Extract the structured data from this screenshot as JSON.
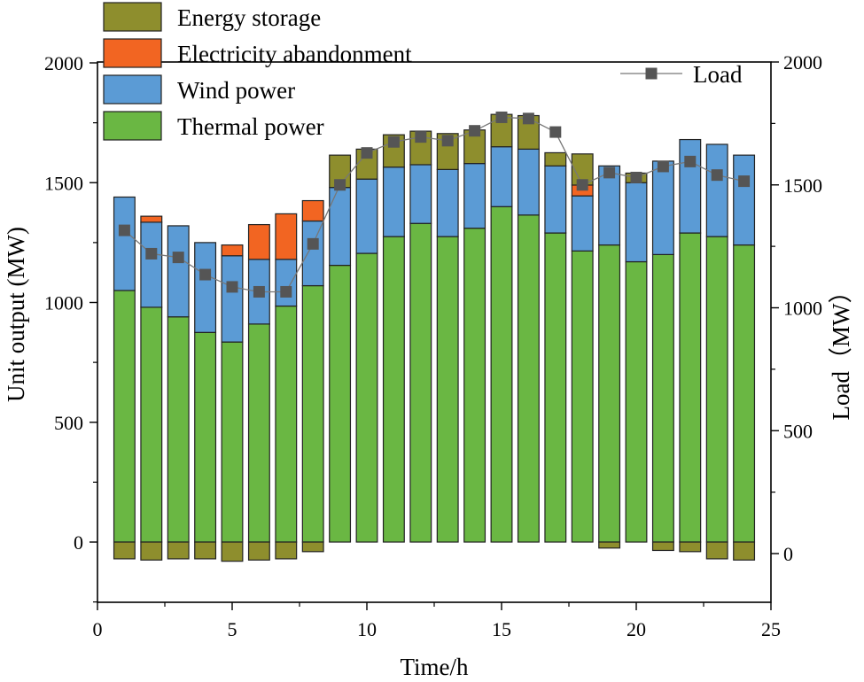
{
  "chart_data": {
    "type": "bar",
    "xlabel": "Time/h",
    "ylabel_left": "Unit output (MW)",
    "ylabel_right": "Load（MW）",
    "xlim": [
      0,
      25
    ],
    "ylim_left": [
      -250,
      2000
    ],
    "ylim_right": [
      -200,
      2000
    ],
    "x_ticks": [
      0,
      5,
      10,
      15,
      20,
      25
    ],
    "y_ticks_left": [
      0,
      500,
      1000,
      1500,
      2000
    ],
    "y_ticks_right": [
      0,
      500,
      1000,
      1500,
      2000
    ],
    "grid": false,
    "legend_placement": "top-left",
    "x": [
      1,
      2,
      3,
      4,
      5,
      6,
      7,
      8,
      9,
      10,
      11,
      12,
      13,
      14,
      15,
      16,
      17,
      18,
      19,
      20,
      21,
      22,
      23,
      24
    ],
    "stacked_series": [
      {
        "name": "Thermal power",
        "color": "#6ab743",
        "values": [
          1050,
          980,
          940,
          875,
          835,
          910,
          985,
          1070,
          1155,
          1205,
          1275,
          1330,
          1275,
          1310,
          1400,
          1365,
          1290,
          1215,
          1240,
          1170,
          1200,
          1290,
          1275,
          1240
        ]
      },
      {
        "name": "Wind power",
        "color": "#5b9bd5",
        "values": [
          390,
          355,
          380,
          375,
          360,
          270,
          195,
          270,
          325,
          310,
          290,
          245,
          280,
          270,
          250,
          275,
          280,
          230,
          330,
          330,
          390,
          390,
          385,
          375
        ]
      },
      {
        "name": "Electricity abandonment",
        "color": "#f26522",
        "values": [
          0,
          25,
          0,
          0,
          45,
          145,
          190,
          85,
          0,
          0,
          0,
          0,
          0,
          0,
          0,
          0,
          0,
          45,
          0,
          0,
          0,
          0,
          0,
          0
        ]
      },
      {
        "name": "Energy storage",
        "color": "#8e8e2d",
        "values": [
          0,
          0,
          0,
          0,
          0,
          0,
          0,
          0,
          135,
          125,
          135,
          140,
          150,
          140,
          135,
          140,
          55,
          130,
          0,
          40,
          0,
          0,
          0,
          0
        ]
      }
    ],
    "negative_series": {
      "name": "Energy storage",
      "color": "#8e8e2d",
      "values": [
        -70,
        -75,
        -70,
        -70,
        -80,
        -75,
        -70,
        -40,
        0,
        0,
        0,
        0,
        0,
        0,
        0,
        0,
        0,
        0,
        -25,
        0,
        -35,
        -40,
        -70,
        -75
      ]
    },
    "line_series": {
      "name": "Load",
      "color": "#555555",
      "axis": "right",
      "values": [
        1315,
        1220,
        1205,
        1135,
        1085,
        1065,
        1065,
        1260,
        1500,
        1630,
        1675,
        1695,
        1680,
        1720,
        1775,
        1770,
        1715,
        1500,
        1550,
        1530,
        1575,
        1595,
        1540,
        1515
      ]
    },
    "legend_items": [
      "Energy storage",
      "Electricity abandonment",
      "Wind power",
      "Thermal power"
    ]
  }
}
